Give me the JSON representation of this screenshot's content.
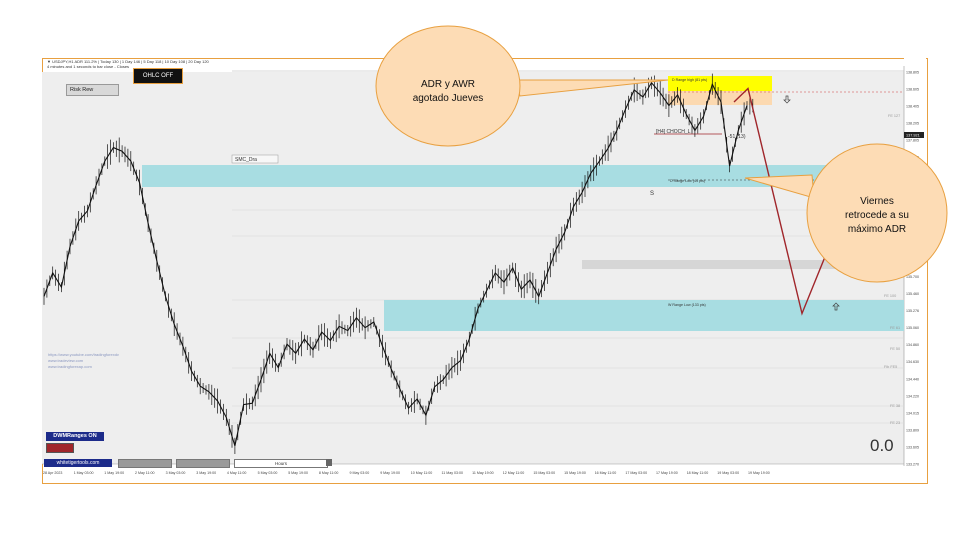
{
  "header": {
    "line1": "▼ USDJPY,H1  ADR 111.2%  |  Today 130  |  1 Day 146  |  5 Day 118  |  10 Day 108  |  20 Day 120",
    "line2": "4 minutes and 1 seconds to bar close - Closes"
  },
  "buttons": {
    "ohlc": "OHLC OFF",
    "risk": "Risk Rew",
    "dwm": "DWMRanges ON",
    "site": "whitetigertools.com",
    "hours": "Hours"
  },
  "labels": {
    "smc": "SMC_Dra",
    "choch": "[H4] CHOCH_L",
    "d_high": "D Range high (81 pts)",
    "d_low": "D Range Low (44 pts)",
    "w_low": "W Range Low (133 pts)",
    "s_marker": "S",
    "target": "-51 (13)",
    "fib1": "FE 127",
    "fib2": "FE 100",
    "fib3": "FE 61",
    "fib4": "FE 50",
    "fib5": "Fib FE5",
    "fib6": "FE 38",
    "fib7": "FE 23"
  },
  "watermark": [
    "https://www.youtube.com/tradingforexdv",
    "www.tradeview.com",
    "www.tradingforexap.com"
  ],
  "big_value": "0.0",
  "callouts": {
    "top": [
      "ADR y AWR",
      "agotado Jueves"
    ],
    "right": [
      "Viernes",
      "retrocede a su",
      "máximo ADR"
    ]
  },
  "colors": {
    "callout_fill": "#fddcb5",
    "callout_border": "#e8a040",
    "zone_cyan": "#a8dde2",
    "zone_yellow": "#ffff00",
    "zone_orange": "#fcd9b0",
    "zone_gray": "#d6d6d6",
    "arrow_red": "#a0262b",
    "candle": "#111111",
    "dwm_bg": "#1c2b8a"
  },
  "chart_data": {
    "type": "line",
    "title": "USDJPY,H1",
    "x_tick_labels": [
      "28 Apr 2023",
      "1 May 03:00",
      "1 May 19:00",
      "2 May 11:00",
      "3 May 03:00",
      "3 May 19:00",
      "4 May 11:00",
      "5 May 03:00",
      "5 May 19:00",
      "8 May 11:00",
      "9 May 03:00",
      "9 May 19:00",
      "10 May 11:00",
      "11 May 03:00",
      "11 May 19:00",
      "12 May 11:00",
      "15 May 03:00",
      "15 May 19:00",
      "16 May 11:00",
      "17 May 03:00",
      "17 May 19:00",
      "18 May 11:00",
      "19 May 03:00",
      "19 May 19:00"
    ],
    "y_tick_labels": [
      "138.805",
      "138.605",
      "138.405",
      "138.205",
      "137.805",
      "137.605",
      "137.205",
      "136.905",
      "136.615",
      "136.410",
      "136.205",
      "135.810",
      "135.700",
      "135.460",
      "135.276",
      "135.060",
      "134.860",
      "134.630",
      "134.440",
      "134.220",
      "134.015",
      "133.809",
      "133.605",
      "133.270"
    ],
    "current_price": "137.921",
    "series": [
      {
        "values": [
          135.72,
          136.05,
          135.85,
          136.42,
          136.78,
          136.92,
          137.28,
          137.62,
          137.81,
          137.76,
          137.62,
          137.32,
          136.75,
          136.22,
          135.72,
          135.33,
          135.02,
          134.67,
          134.46,
          134.38,
          134.25,
          134.02,
          133.62,
          134.2,
          134.22,
          134.55,
          134.92,
          134.72,
          135.05,
          134.92,
          135.12,
          134.97,
          135.22,
          135.1,
          135.3,
          135.24,
          135.42,
          135.28,
          135.36,
          135.02,
          134.7,
          134.42,
          134.15,
          134.28,
          134.05,
          134.45,
          134.55,
          134.72,
          134.82,
          135.12,
          135.55,
          135.8,
          136.05,
          135.92,
          136.12,
          135.82,
          135.95,
          135.72,
          136.05,
          136.38,
          136.62,
          136.98,
          137.18,
          137.45,
          137.62,
          137.8,
          138.05,
          138.35,
          138.62,
          138.52,
          138.72,
          138.58,
          138.4,
          138.55,
          138.28,
          138.05,
          138.25,
          138.7,
          138.45,
          137.55,
          138.05,
          138.4
        ]
      }
    ],
    "zones": [
      {
        "name": "SMC_Dra",
        "from": 137.21,
        "to": 137.42
      },
      {
        "name": "W Range Low (133 pts)",
        "from": 135.25,
        "to": 135.58
      },
      {
        "name": "D Range high (81 pts)",
        "from": 138.6,
        "to": 138.82
      },
      {
        "name": "D Range Low (44 pts)",
        "from": 137.15,
        "to": 137.31
      }
    ],
    "projection": [
      [
        138.45,
        138.64
      ],
      [
        138.64,
        135.48
      ],
      [
        135.48,
        136.38
      ]
    ]
  }
}
